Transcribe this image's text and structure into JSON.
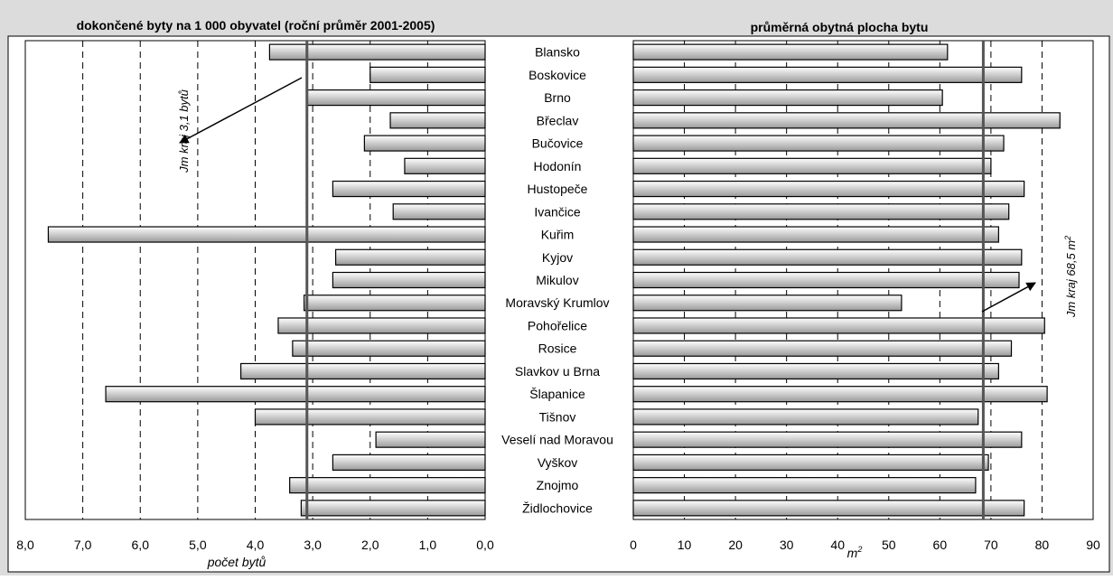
{
  "chart_data": [
    {
      "type": "bar",
      "orientation": "horizontal",
      "direction": "reversed",
      "title": "dokončené byty na 1 000 obyvatel (roční průměr 2001-2005)",
      "xlabel": "počet bytů",
      "xlim": [
        0,
        8
      ],
      "xticks": [
        "8,0",
        "7,0",
        "6,0",
        "5,0",
        "4,0",
        "3,0",
        "2,0",
        "1,0",
        "0,0"
      ],
      "grid": "vertical dashed",
      "categories": [
        "Blansko",
        "Boskovice",
        "Brno",
        "Břeclav",
        "Bučovice",
        "Hodonín",
        "Hustopeče",
        "Ivančice",
        "Kuřim",
        "Kyjov",
        "Mikulov",
        "Moravský Krumlov",
        "Pohořelice",
        "Rosice",
        "Slavkov u Brna",
        "Šlapanice",
        "Tišnov",
        "Veselí nad Moravou",
        "Vyškov",
        "Znojmo",
        "Židlochovice"
      ],
      "values": [
        3.75,
        2.0,
        3.1,
        1.65,
        2.1,
        1.4,
        2.65,
        1.6,
        7.6,
        2.6,
        2.65,
        3.15,
        3.6,
        3.35,
        4.25,
        6.6,
        4.0,
        1.9,
        2.65,
        3.4,
        3.2
      ],
      "reference": {
        "value": 3.1,
        "label": "Jm kraj 3,1 bytů"
      }
    },
    {
      "type": "bar",
      "orientation": "horizontal",
      "title": "průměrná obytná plocha bytu",
      "xlabel": "m",
      "xlabel_sup": "2",
      "xlim": [
        0,
        90
      ],
      "xticks": [
        "0",
        "10",
        "20",
        "30",
        "40",
        "50",
        "60",
        "70",
        "80",
        "90"
      ],
      "grid": "vertical dashed",
      "categories": [
        "Blansko",
        "Boskovice",
        "Brno",
        "Břeclav",
        "Bučovice",
        "Hodonín",
        "Hustopeče",
        "Ivančice",
        "Kuřim",
        "Kyjov",
        "Mikulov",
        "Moravský Krumlov",
        "Pohořelice",
        "Rosice",
        "Slavkov u Brna",
        "Šlapanice",
        "Tišnov",
        "Veselí nad Moravou",
        "Vyškov",
        "Znojmo",
        "Židlochovice"
      ],
      "values": [
        61.5,
        76,
        60.5,
        83.5,
        72.5,
        70,
        76.5,
        73.5,
        71.5,
        76,
        75.5,
        52.5,
        80.5,
        74,
        71.5,
        81,
        67.5,
        76,
        69.5,
        67,
        76.5
      ],
      "reference": {
        "value": 68.5,
        "label": "Jm kraj 68,5 m",
        "label_sup": "2"
      }
    }
  ],
  "colors": {
    "bar_light": "#ffffff",
    "bar_dark": "#9a9a9a",
    "frame": "#000000",
    "background": "#ffffff",
    "outer": "#dcdcdc"
  }
}
